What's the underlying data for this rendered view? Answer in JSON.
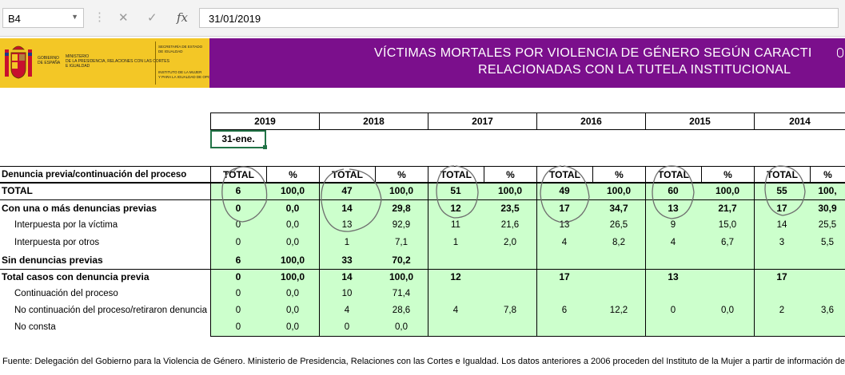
{
  "formula_bar": {
    "name_box": "B4",
    "cancel_glyph": "✕",
    "enter_glyph": "✓",
    "fx_label": "fx",
    "value": "31/01/2019"
  },
  "header": {
    "logo_lines_1": [
      "GOBIERNO",
      "DE ESPAÑA"
    ],
    "logo_lines_2": [
      "MINISTERIO",
      "DE LA PRESIDENCIA, RELACIONES CON LAS CORTES",
      "E IGUALDAD"
    ],
    "logo_lines_3": [
      "SECRETARÍA DE ESTADO",
      "DE IGUALDAD"
    ],
    "logo_lines_4": [
      "INSTITUTO DE LA MUJER",
      "Y PARA LA IGUALDAD DE OPORTUNIDADES"
    ],
    "title_line1": "VÍCTIMAS MORTALES POR VIOLENCIA DE GÉNERO SEGÚN CARACTI",
    "title_line2": "RELACIONADAS CON  LA TUTELA INSTITUCIONAL",
    "banner_color": "#7b0f8c",
    "logo_color": "#f3c726"
  },
  "table": {
    "years": [
      "2019",
      "2018",
      "2017",
      "2016",
      "2015",
      "2014"
    ],
    "date_cell": "31-ene.",
    "col_header_label": "Denuncia previa/continuación del proceso",
    "col_total": "TOTAL",
    "col_pct": "%",
    "rows": [
      {
        "label": "TOTAL",
        "style": "bold",
        "values": [
          "6",
          "100,0",
          "47",
          "100,0",
          "51",
          "100,0",
          "49",
          "100,0",
          "60",
          "100,0",
          "55",
          "100,"
        ]
      },
      {
        "label": "Con una o más denuncias previas",
        "style": "bold",
        "values": [
          "0",
          "0,0",
          "14",
          "29,8",
          "12",
          "23,5",
          "17",
          "34,7",
          "13",
          "21,7",
          "17",
          "30,9"
        ]
      },
      {
        "label": "Interpuesta por la víctima",
        "style": "indent",
        "values": [
          "0",
          "0,0",
          "13",
          "92,9",
          "11",
          "21,6",
          "13",
          "26,5",
          "9",
          "15,0",
          "14",
          "25,5"
        ]
      },
      {
        "label": "Interpuesta por otros",
        "style": "indent",
        "values": [
          "0",
          "0,0",
          "1",
          "7,1",
          "1",
          "2,0",
          "4",
          "8,2",
          "4",
          "6,7",
          "3",
          "5,5"
        ]
      },
      {
        "label": "Sin denuncias previas",
        "style": "bold",
        "values": [
          "6",
          "100,0",
          "33",
          "70,2",
          "",
          "",
          "",
          "",
          "",
          "",
          "",
          ""
        ]
      },
      {
        "label": "Total casos con denuncia previa",
        "style": "bold",
        "values": [
          "0",
          "100,0",
          "14",
          "100,0",
          "12",
          "",
          "17",
          "",
          "13",
          "",
          "17",
          ""
        ]
      },
      {
        "label": "Continuación del proceso",
        "style": "indent",
        "values": [
          "0",
          "0,0",
          "10",
          "71,4",
          "",
          "",
          "",
          "",
          "",
          "",
          "",
          ""
        ]
      },
      {
        "label": "No continuación del proceso/retiraron denuncia",
        "style": "indent",
        "values": [
          "0",
          "0,0",
          "4",
          "28,6",
          "4",
          "7,8",
          "6",
          "12,2",
          "0",
          "0,0",
          "2",
          "3,6"
        ]
      },
      {
        "label": "No consta",
        "style": "indent",
        "values": [
          "0",
          "0,0",
          "0",
          "0,0",
          "",
          "",
          "",
          "",
          "",
          "",
          "",
          ""
        ]
      }
    ]
  },
  "footer": "Fuente: Delegación del Gobierno para la Violencia de Género. Ministerio de Presidencia, Relaciones con las Cortes e Igualdad. Los datos anteriores a 2006 proceden del Instituto de la Mujer a partir de información de prensa"
}
